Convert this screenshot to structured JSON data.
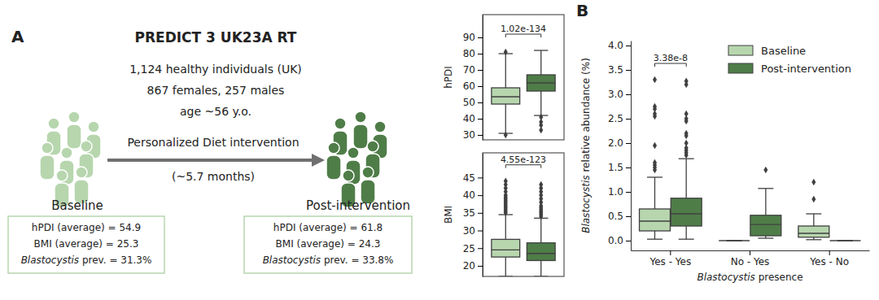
{
  "diagram": {
    "panel_labels": [
      "A",
      "B"
    ],
    "title": "PREDICT 3 UK23A RT",
    "cohort": [
      "1,124 healthy individuals (UK)",
      "867 females, 257 males",
      "age ~56 y.o."
    ],
    "intervention": "Personalized Diet intervention",
    "duration": "(~5.7 months)",
    "baseline": {
      "label": "Baseline",
      "stats": [
        "hPDI (average) = 54.9",
        "BMI (average) = 25.3",
        "Blastocystis prev. = 31.3%"
      ]
    },
    "post": {
      "label": "Post-intervention",
      "stats": [
        "hPDI (average) = 61.8",
        "BMI (average) = 24.3",
        "Blastocystis prev. = 33.8%"
      ]
    }
  },
  "chart_data": [
    {
      "type": "box",
      "y_label": "hPDI",
      "categories": [
        null,
        null
      ],
      "colors": [
        "#b7d6ae",
        "#4f7d48"
      ],
      "boxes": [
        {
          "whislo": 31,
          "q1": 49,
          "med": 53.5,
          "q3": 59,
          "whishi": 80,
          "fliers": [
            81,
            30
          ]
        },
        {
          "whislo": 42,
          "q1": 57,
          "med": 62,
          "q3": 67,
          "whishi": 82,
          "fliers": [
            41,
            38,
            36,
            33
          ]
        }
      ],
      "ylim": [
        27,
        104
      ],
      "yticks": [
        30,
        40,
        50,
        60,
        70,
        80,
        90
      ],
      "annotation": "1.02e-134",
      "tick_labels": "y",
      "marker": "diamond"
    },
    {
      "type": "box",
      "y_label": "BMI",
      "categories": [
        null,
        null
      ],
      "colors": [
        "#b7d6ae",
        "#4f7d48"
      ],
      "boxes": [
        {
          "whislo": 17,
          "q1": 22.5,
          "med": 24.5,
          "q3": 27.5,
          "whishi": 34.5,
          "fliers": [
            35,
            35.5,
            36,
            36.5,
            37,
            37.5,
            38,
            38.5,
            39,
            39.5,
            40,
            41,
            42,
            43,
            44
          ]
        },
        {
          "whislo": 17,
          "q1": 21.5,
          "med": 23.5,
          "q3": 26.5,
          "whishi": 33.5,
          "fliers": [
            34,
            34.5,
            35,
            35.5,
            36,
            36.5,
            37,
            38,
            39,
            40,
            41,
            42,
            43
          ]
        }
      ],
      "ylim": [
        17,
        52
      ],
      "yticks": [
        20,
        25,
        30,
        35,
        40,
        45
      ],
      "annotation": "4.55e-123",
      "tick_labels": "y",
      "marker": "diamond"
    },
    {
      "type": "box",
      "y_label": "Blastocystis relative abundance (%)",
      "x_label": "Blastocystis presence",
      "categories": [
        "Yes - Yes",
        "No - Yes",
        "Yes - No"
      ],
      "series": [
        {
          "name": "Baseline",
          "color": "#b7d6ae",
          "boxes": [
            {
              "whislo": 0.03,
              "q1": 0.2,
              "med": 0.4,
              "q3": 0.65,
              "whishi": 1.3,
              "fliers": [
                1.45,
                1.5,
                1.55,
                1.6,
                1.95,
                2.55,
                2.6,
                2.7,
                2.75,
                3.3
              ]
            },
            {
              "whislo": 0,
              "q1": 0,
              "med": 0,
              "q3": 0,
              "whishi": 0,
              "fliers": []
            },
            {
              "whislo": 0.02,
              "q1": 0.07,
              "med": 0.15,
              "q3": 0.3,
              "whishi": 0.55,
              "fliers": [
                0.85,
                1.2
              ]
            }
          ]
        },
        {
          "name": "Post-intervention",
          "color": "#4f7d48",
          "boxes": [
            {
              "whislo": 0.03,
              "q1": 0.3,
              "med": 0.55,
              "q3": 0.87,
              "whishi": 1.68,
              "fliers": [
                1.75,
                1.8,
                1.85,
                1.9,
                2.0,
                2.15,
                2.2,
                2.45,
                2.5,
                2.6,
                3.2,
                3.27
              ]
            },
            {
              "whislo": 0.05,
              "q1": 0.1,
              "med": 0.33,
              "q3": 0.52,
              "whishi": 1.07,
              "fliers": [
                1.45
              ]
            },
            {
              "whislo": 0,
              "q1": 0,
              "med": 0,
              "q3": 0,
              "whishi": 0,
              "fliers": []
            }
          ]
        }
      ],
      "ylim": [
        -0.2,
        4.1
      ],
      "yticks": [
        {
          "value": 0,
          "label": "0.0"
        },
        {
          "value": 0.5,
          "label": "0.5"
        },
        {
          "value": 1,
          "label": "1.0"
        },
        {
          "value": 1.5,
          "label": "1.5"
        },
        {
          "value": 2,
          "label": "2.0"
        },
        {
          "value": 2.5,
          "label": "2.5"
        },
        {
          "value": 3,
          "label": "3.0"
        },
        {
          "value": 3.5,
          "label": "3.5"
        },
        {
          "value": 4,
          "label": "4.0"
        }
      ],
      "annotation": "3.38e-8",
      "legend": "upper right",
      "marker": "diamond"
    }
  ]
}
